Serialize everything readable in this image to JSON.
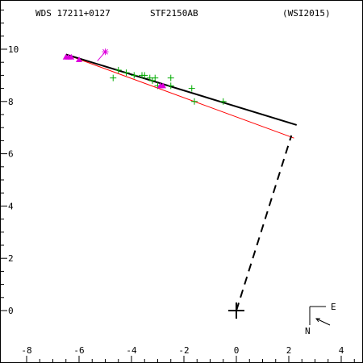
{
  "header": {
    "wds_id": "WDS 17211+0127",
    "discoverer": "STF2150AB",
    "reference": "(WSI2015)"
  },
  "compass": {
    "east_label": "E",
    "north_label": "N"
  },
  "chart_data": {
    "type": "scatter",
    "xlim": [
      -9,
      4.5
    ],
    "ylim": [
      -2,
      11
    ],
    "x_ticks": [
      -8,
      -6,
      -4,
      -2,
      0,
      2,
      4
    ],
    "y_ticks": [
      0,
      2,
      4,
      6,
      8,
      10
    ],
    "grid": false,
    "primary": [
      0,
      0
    ],
    "orbit_line": {
      "from": [
        -6.5,
        9.8
      ],
      "to": [
        2.3,
        7.1
      ]
    },
    "fit_line": {
      "from": [
        -6.5,
        9.8
      ],
      "to": [
        2.2,
        6.6
      ]
    },
    "periastron_line": {
      "from": [
        0,
        0
      ],
      "to": [
        2.1,
        6.7
      ]
    },
    "series": [
      {
        "marker": "plus",
        "color": "#00aa00",
        "points": [
          [
            -4.7,
            8.9
          ],
          [
            -4.5,
            9.2
          ],
          [
            -4.2,
            9.1
          ],
          [
            -3.9,
            9.0
          ],
          [
            -3.6,
            9.0
          ],
          [
            -3.5,
            9.0
          ],
          [
            -3.3,
            8.9
          ],
          [
            -3.2,
            8.8
          ],
          [
            -3.1,
            8.9
          ],
          [
            -3.0,
            8.6
          ],
          [
            -2.5,
            8.9
          ],
          [
            -2.5,
            8.6
          ],
          [
            -1.7,
            8.5
          ],
          [
            -1.6,
            8.0
          ],
          [
            -0.5,
            8.0
          ]
        ]
      },
      {
        "marker": "triangle",
        "color": "#dd00dd",
        "points": [
          [
            -6.5,
            9.7
          ],
          [
            -6.4,
            9.7
          ],
          [
            -6.3,
            9.7
          ],
          [
            -6.0,
            9.6
          ],
          [
            -2.9,
            8.6
          ],
          [
            -2.8,
            8.6
          ]
        ]
      },
      {
        "marker": "star",
        "color": "#dd00dd",
        "points": [
          [
            -5.0,
            9.9
          ]
        ]
      }
    ]
  }
}
